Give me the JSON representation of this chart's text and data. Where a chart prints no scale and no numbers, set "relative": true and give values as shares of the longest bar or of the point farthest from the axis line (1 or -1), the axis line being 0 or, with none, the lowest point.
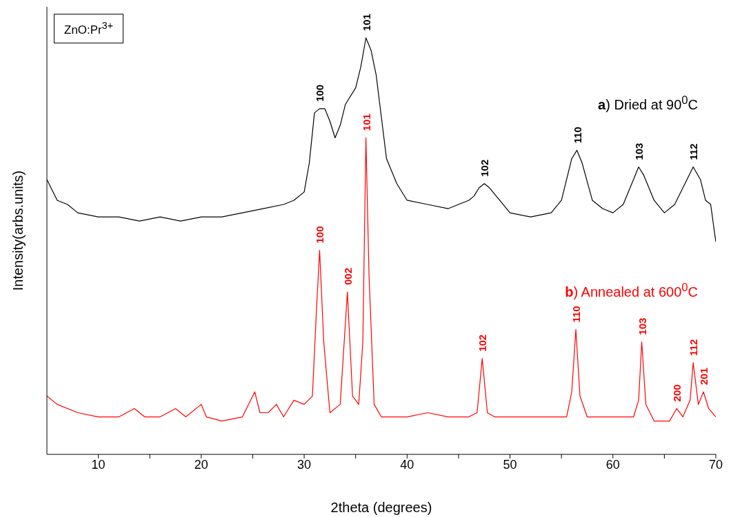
{
  "chart_data": {
    "type": "line",
    "relative": true,
    "marker": "none",
    "xlabel": "2theta (degrees)",
    "ylabel": "Intensity(arbs.units)",
    "xlim": [
      5,
      70
    ],
    "xticks": [
      10,
      {
        "value": 15,
        "label": null
      },
      20,
      {
        "value": 25,
        "label": null
      },
      30,
      {
        "value": 35,
        "label": null
      },
      40,
      {
        "value": 45,
        "label": null
      },
      50,
      {
        "value": 55,
        "label": null
      },
      60,
      {
        "value": 65,
        "label": null
      },
      70
    ],
    "series": [
      {
        "name": "a) Dried at 90$^{0}$C",
        "color": "#000000",
        "x": [
          5,
          6,
          7,
          8,
          10,
          12,
          14,
          16,
          18,
          20,
          22,
          24,
          26,
          28,
          29,
          30,
          30.5,
          31,
          31.5,
          32,
          32.5,
          33,
          33.5,
          34,
          35,
          35.5,
          36,
          36.5,
          37,
          37.5,
          38,
          39,
          40,
          42,
          44,
          46,
          46.5,
          47,
          47.5,
          48,
          49,
          50,
          52,
          54,
          55,
          55.5,
          56,
          56.5,
          57,
          58,
          59,
          60,
          61,
          62,
          62.5,
          63,
          64,
          65,
          66,
          67,
          67.8,
          68.5,
          69,
          69.5,
          70
        ],
        "values": [
          0.66,
          0.61,
          0.6,
          0.58,
          0.57,
          0.57,
          0.56,
          0.57,
          0.56,
          0.57,
          0.57,
          0.58,
          0.59,
          0.6,
          0.61,
          0.63,
          0.7,
          0.82,
          0.83,
          0.83,
          0.8,
          0.76,
          0.79,
          0.84,
          0.88,
          0.93,
          1,
          0.97,
          0.91,
          0.81,
          0.71,
          0.65,
          0.61,
          0.6,
          0.59,
          0.61,
          0.62,
          0.64,
          0.65,
          0.64,
          0.61,
          0.58,
          0.57,
          0.58,
          0.61,
          0.66,
          0.71,
          0.73,
          0.7,
          0.61,
          0.59,
          0.58,
          0.6,
          0.66,
          0.69,
          0.67,
          0.61,
          0.58,
          0.6,
          0.65,
          0.69,
          0.66,
          0.61,
          0.6,
          0.51
        ]
      },
      {
        "name": "b) Annealed at 600$^{0}$C",
        "color": "#ff0000",
        "x": [
          5,
          6,
          8,
          10,
          12,
          13.5,
          14.5,
          16,
          17.5,
          18.5,
          20,
          20.5,
          22,
          24,
          25.2,
          25.7,
          26.5,
          27.3,
          28,
          29,
          30,
          30.8,
          31.2,
          31.5,
          31.9,
          32.5,
          33.5,
          34.2,
          34.7,
          35.3,
          35.7,
          36,
          36.3,
          36.8,
          37.5,
          40,
          42,
          44,
          46,
          46.8,
          47.3,
          47.8,
          48.5,
          50,
          52,
          54,
          55.5,
          56,
          56.4,
          56.8,
          57.5,
          60,
          62,
          62.5,
          62.8,
          63.2,
          64,
          65.5,
          66.2,
          66.8,
          67.5,
          67.8,
          68.3,
          68.8,
          69.3,
          70
        ],
        "values": [
          0.14,
          0.12,
          0.1,
          0.09,
          0.09,
          0.11,
          0.09,
          0.09,
          0.11,
          0.09,
          0.12,
          0.09,
          0.08,
          0.09,
          0.15,
          0.1,
          0.1,
          0.12,
          0.09,
          0.13,
          0.12,
          0.14,
          0.35,
          0.49,
          0.27,
          0.1,
          0.12,
          0.39,
          0.14,
          0.12,
          0.27,
          0.76,
          0.43,
          0.12,
          0.09,
          0.09,
          0.1,
          0.09,
          0.09,
          0.1,
          0.23,
          0.1,
          0.09,
          0.09,
          0.09,
          0.09,
          0.09,
          0.15,
          0.3,
          0.14,
          0.09,
          0.09,
          0.09,
          0.13,
          0.27,
          0.12,
          0.08,
          0.08,
          0.11,
          0.09,
          0.13,
          0.22,
          0.12,
          0.15,
          0.11,
          0.09
        ]
      }
    ],
    "annotations": [
      "ZnO:Pr$^{3+}$",
      {
        "text": "100",
        "x": 31.5,
        "y": 0.83
      },
      {
        "text": "101",
        "x": 36,
        "y": 1
      },
      {
        "text": "102",
        "x": 47.5,
        "y": 0.65
      },
      {
        "text": "110",
        "x": 56.5,
        "y": 0.73
      },
      {
        "text": "103",
        "x": 62.5,
        "y": 0.69
      },
      {
        "text": "112",
        "x": 67.8,
        "y": 0.69
      },
      {
        "text": "100",
        "x": 31.5,
        "y": 0.49
      },
      {
        "text": "002",
        "x": 34.2,
        "y": 0.39
      },
      {
        "text": "101",
        "x": 36,
        "y": 0.76
      },
      {
        "text": "102",
        "x": 47.3,
        "y": 0.23
      },
      {
        "text": "110",
        "x": 56.4,
        "y": 0.3
      },
      {
        "text": "103",
        "x": 62.8,
        "y": 0.27
      },
      {
        "text": "200",
        "x": 66.2,
        "y": 0.11
      },
      {
        "text": "112",
        "x": 67.8,
        "y": 0.22
      },
      {
        "text": "201",
        "x": 68.8,
        "y": 0.15
      }
    ]
  }
}
